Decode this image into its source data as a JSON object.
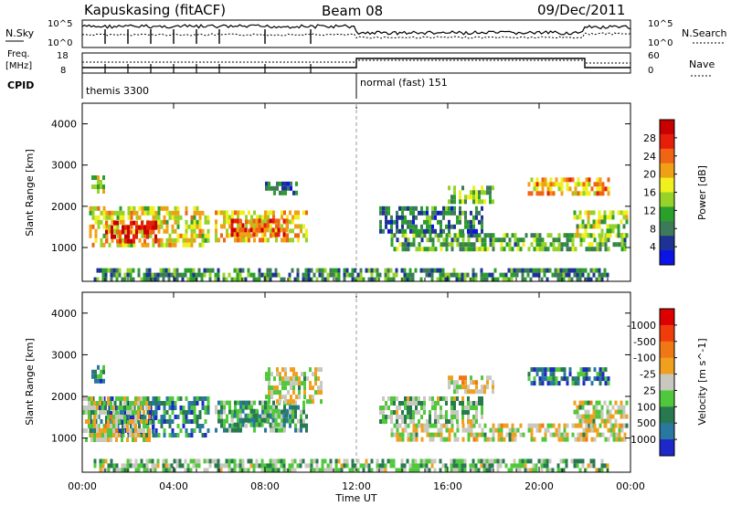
{
  "header": {
    "station": "Kapuskasing (fitACF)",
    "beam": "Beam 08",
    "date": "09/Dec/2011"
  },
  "top_panels": {
    "nsky_label": "N.Sky",
    "nsearch_label": "N.Search",
    "nsky_ticks": [
      "10^5",
      "10^0"
    ],
    "nsearch_ticks": [
      "10^5",
      "10^0"
    ],
    "freq_label_line1": "Freq.",
    "freq_label_line2": "[MHz]",
    "freq_ticks": [
      "18",
      "8"
    ],
    "nave_label": "Nave",
    "nave_ticks": [
      "60",
      "0"
    ],
    "cpid_label": "CPID",
    "cpid_segments": [
      {
        "label": "themis 3300",
        "start_hour": 0,
        "end_hour": 12
      },
      {
        "label": "normal (fast) 151",
        "start_hour": 12,
        "end_hour": 24
      }
    ]
  },
  "x_axis": {
    "label": "Time UT",
    "ticks": [
      "00:00",
      "04:00",
      "08:00",
      "12:00",
      "16:00",
      "20:00",
      "00:00"
    ],
    "tick_hours": [
      0,
      4,
      8,
      12,
      16,
      20,
      24
    ]
  },
  "chart_data": [
    {
      "type": "heatmap",
      "name": "power",
      "ylabel": "Slant Range [km]",
      "xlim": [
        0,
        24
      ],
      "ylim": [
        180,
        4500
      ],
      "yticks": [
        1000,
        2000,
        3000,
        4000
      ],
      "colorbar": {
        "label": "Power [dB]",
        "ticks": [
          "4",
          "8",
          "12",
          "16",
          "20",
          "24",
          "28"
        ],
        "colors": [
          "#0a14e6",
          "#1e3296",
          "#3c7a5a",
          "#2aa02a",
          "#96d228",
          "#f0f01e",
          "#f0a014",
          "#f06414",
          "#e61e0a",
          "#c80000"
        ]
      },
      "regions": [
        {
          "t": [
            0.3,
            5.5
          ],
          "r": [
            1100,
            2000
          ],
          "level": 0.55
        },
        {
          "t": [
            1.0,
            3.2
          ],
          "r": [
            1150,
            1650
          ],
          "level": 0.9
        },
        {
          "t": [
            0.4,
            1.0
          ],
          "r": [
            2350,
            2750
          ],
          "level": 0.45
        },
        {
          "t": [
            5.8,
            9.8
          ],
          "r": [
            1150,
            1900
          ],
          "level": 0.6
        },
        {
          "t": [
            6.5,
            9.0
          ],
          "r": [
            1300,
            1700
          ],
          "level": 0.8
        },
        {
          "t": [
            8.0,
            9.4
          ],
          "r": [
            2300,
            2600
          ],
          "level": 0.2
        },
        {
          "t": [
            13.5,
            23.8
          ],
          "r": [
            1000,
            1350
          ],
          "level": 0.35
        },
        {
          "t": [
            13.0,
            17.5
          ],
          "r": [
            1400,
            2000
          ],
          "level": 0.25
        },
        {
          "t": [
            16.0,
            18.0
          ],
          "r": [
            2100,
            2500
          ],
          "level": 0.4
        },
        {
          "t": [
            19.5,
            23.0
          ],
          "r": [
            2300,
            2700
          ],
          "level": 0.65
        },
        {
          "t": [
            21.5,
            23.8
          ],
          "r": [
            1300,
            1900
          ],
          "level": 0.45
        },
        {
          "t": [
            0.5,
            23.0
          ],
          "r": [
            250,
            500
          ],
          "level": 0.3
        }
      ]
    },
    {
      "type": "heatmap",
      "name": "velocity",
      "ylabel": "Slant Range [km]",
      "xlim": [
        0,
        24
      ],
      "ylim": [
        180,
        4500
      ],
      "yticks": [
        1000,
        2000,
        3000,
        4000
      ],
      "colorbar": {
        "label": "Velocity [m s^-1]",
        "ticks": [
          "1000",
          "500",
          "100",
          "25",
          "-25",
          "-100",
          "-500",
          "-1000"
        ],
        "colors": [
          "#1e28c8",
          "#2878a0",
          "#287850",
          "#50c83c",
          "#c8c8be",
          "#f0a01e",
          "#f07814",
          "#f03c0a",
          "#dc0000"
        ]
      },
      "regions": [
        {
          "t": [
            0.3,
            5.5
          ],
          "r": [
            1100,
            2000
          ],
          "level": 0.25
        },
        {
          "t": [
            1.0,
            3.2
          ],
          "r": [
            1150,
            1650
          ],
          "level": 0.2
        },
        {
          "t": [
            0.4,
            1.0
          ],
          "r": [
            2350,
            2750
          ],
          "level": 0.25
        },
        {
          "t": [
            5.8,
            9.8
          ],
          "r": [
            1150,
            1900
          ],
          "level": 0.35
        },
        {
          "t": [
            6.5,
            9.0
          ],
          "r": [
            1300,
            1700
          ],
          "level": 0.3
        },
        {
          "t": [
            8.0,
            10.5
          ],
          "r": [
            1900,
            2700
          ],
          "level": 0.5
        },
        {
          "t": [
            13.5,
            23.8
          ],
          "r": [
            1000,
            1350
          ],
          "level": 0.5
        },
        {
          "t": [
            13.0,
            17.5
          ],
          "r": [
            1400,
            2000
          ],
          "level": 0.4
        },
        {
          "t": [
            16.0,
            18.0
          ],
          "r": [
            2100,
            2500
          ],
          "level": 0.55
        },
        {
          "t": [
            19.5,
            23.0
          ],
          "r": [
            2300,
            2700
          ],
          "level": 0.22
        },
        {
          "t": [
            21.5,
            23.8
          ],
          "r": [
            1300,
            1900
          ],
          "level": 0.5
        },
        {
          "t": [
            0.0,
            3.0
          ],
          "r": [
            1000,
            2000
          ],
          "level": 0.5
        },
        {
          "t": [
            0.5,
            23.0
          ],
          "r": [
            250,
            500
          ],
          "level": 0.4
        }
      ]
    }
  ]
}
